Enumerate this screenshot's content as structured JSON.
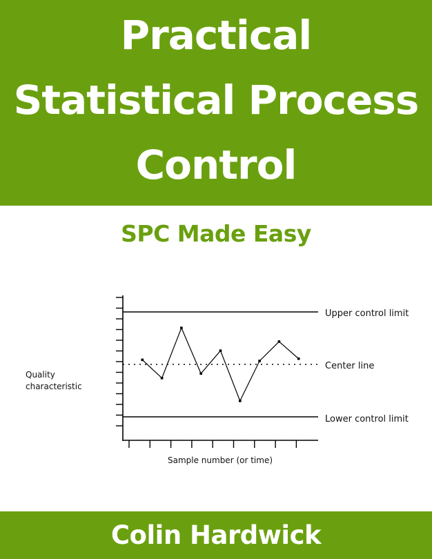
{
  "cover": {
    "title_lines": [
      "Practical",
      "Statistical Process",
      "Control"
    ],
    "subtitle": "SPC Made Easy",
    "author": "Colin Hardwick",
    "accent_color": "#6aa00f"
  },
  "chart_data": {
    "type": "line",
    "x": [
      1,
      2,
      3,
      4,
      5,
      6,
      7,
      8,
      9
    ],
    "values": [
      0.2,
      -0.6,
      1.6,
      -0.4,
      0.6,
      -1.6,
      0.15,
      1.0,
      0.25
    ],
    "ylim": [
      -2.3,
      2.3
    ],
    "xlim": [
      0,
      10
    ],
    "center_line": 0,
    "upper_control_limit": 2.3,
    "lower_control_limit": -2.3,
    "ylabel_lines": [
      "Quality",
      "characteristic"
    ],
    "xlabel": "Sample number (or time)",
    "upper_label": "Upper control limit",
    "center_label": "Center line",
    "lower_label": "Lower control limit",
    "grid": false
  }
}
